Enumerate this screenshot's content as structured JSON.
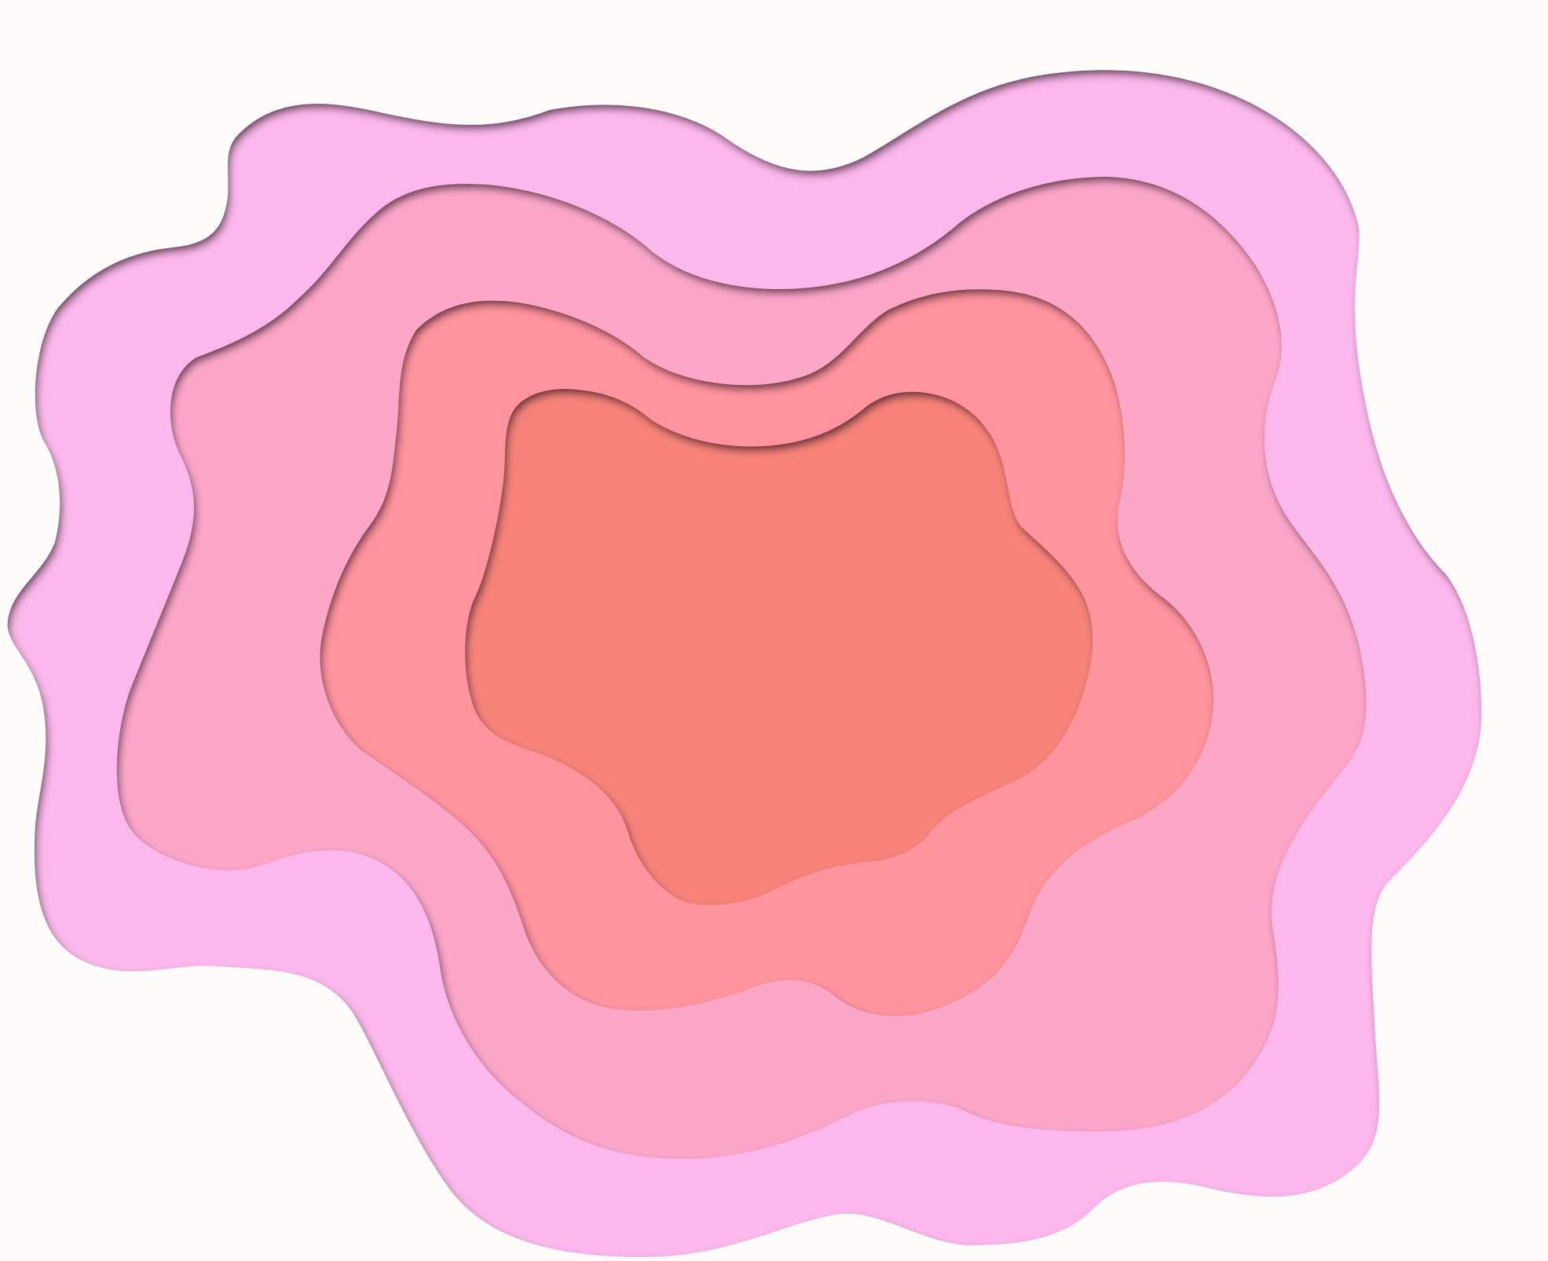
{
  "artwork": {
    "background_color": "#fdfcfa",
    "shadow_color": "#3a0f2a",
    "layers": [
      {
        "name": "outer-layer",
        "fill": "#fcb8ec"
      },
      {
        "name": "second-layer",
        "fill": "#fca6c8"
      },
      {
        "name": "third-layer",
        "fill": "#ff939e"
      },
      {
        "name": "inner-layer",
        "fill": "#f7837a"
      }
    ]
  }
}
